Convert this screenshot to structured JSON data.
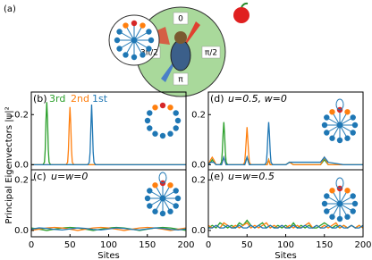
{
  "diagram": {
    "label": "(a)",
    "angles": [
      "0",
      "π/2",
      "π",
      "3π/2"
    ]
  },
  "ylabel": "Principal Eigenvectors |ψ|²",
  "chart_data": [
    {
      "type": "line",
      "label": "(b)",
      "xlim": [
        0,
        200
      ],
      "ylim": [
        -0.02,
        0.29
      ],
      "yticks": [
        {
          "value": 0,
          "label": "0.0"
        },
        {
          "value": 0.2,
          "label": "0.2"
        }
      ],
      "x": [
        0,
        10,
        15,
        17,
        18,
        19,
        20,
        21,
        22,
        23,
        25,
        35,
        45,
        47,
        48,
        49,
        50,
        51,
        52,
        53,
        55,
        65,
        73,
        75,
        76,
        77,
        78,
        79,
        80,
        81,
        83,
        100,
        125,
        150,
        175,
        200
      ],
      "series": [
        {
          "name": "3rd",
          "color": "#2ca02c",
          "values": [
            0,
            0,
            0,
            0.01,
            0.06,
            0.18,
            0.25,
            0.18,
            0.06,
            0.01,
            0,
            0,
            0,
            0,
            0,
            0,
            0,
            0,
            0,
            0,
            0,
            0,
            0,
            0,
            0,
            0,
            0,
            0,
            0,
            0,
            0,
            0,
            0,
            0,
            0,
            0
          ]
        },
        {
          "name": "2nd",
          "color": "#ff7f0e",
          "values": [
            0,
            0,
            0,
            0,
            0,
            0,
            0,
            0,
            0,
            0,
            0,
            0,
            0,
            0.01,
            0.06,
            0.16,
            0.23,
            0.16,
            0.06,
            0.01,
            0,
            0,
            0,
            0,
            0,
            0,
            0,
            0,
            0,
            0,
            0,
            0,
            0,
            0,
            0,
            0
          ]
        },
        {
          "name": "1st",
          "color": "#1f77b4",
          "values": [
            0,
            0,
            0,
            0,
            0,
            0,
            0,
            0,
            0,
            0,
            0,
            0,
            0,
            0,
            0,
            0,
            0,
            0,
            0,
            0,
            0,
            0,
            0,
            0.01,
            0.05,
            0.15,
            0.24,
            0.15,
            0.05,
            0.01,
            0,
            0,
            0,
            0,
            0,
            0
          ]
        }
      ]
    },
    {
      "type": "line",
      "label": "(c)",
      "annotation": "u=w=0",
      "xlabel": "Sites",
      "xlim": [
        0,
        200
      ],
      "ylim": [
        -0.025,
        0.24
      ],
      "xticks": [
        0,
        50,
        100,
        150,
        200
      ],
      "yticks": [
        {
          "value": 0,
          "label": "0.0"
        },
        {
          "value": 0.2,
          "label": "0.2"
        }
      ],
      "x": [
        0,
        10,
        20,
        30,
        40,
        50,
        60,
        70,
        80,
        90,
        100,
        110,
        120,
        130,
        140,
        150,
        160,
        170,
        180,
        190,
        200
      ],
      "series": [
        {
          "color": "#2ca02c",
          "values": [
            0.01,
            0.005,
            0,
            0.005,
            0.01,
            0.012,
            0.01,
            0.005,
            0,
            0.005,
            0.01,
            0.012,
            0.01,
            0.005,
            0,
            0.005,
            0.01,
            0.012,
            0.01,
            0.005,
            0
          ]
        },
        {
          "color": "#ff7f0e",
          "values": [
            0,
            0.005,
            0.01,
            0.012,
            0.01,
            0.005,
            0,
            0.005,
            0.01,
            0.012,
            0.01,
            0.005,
            0,
            0.005,
            0.01,
            0.012,
            0.01,
            0.005,
            0,
            0.005,
            0.01
          ]
        },
        {
          "color": "#1f77b4",
          "values": [
            0.005,
            0.01,
            0.008,
            0.004,
            0.002,
            0.006,
            0.01,
            0.008,
            0.004,
            0.002,
            0.006,
            0.01,
            0.008,
            0.004,
            0.002,
            0.006,
            0.01,
            0.008,
            0.004,
            0.002,
            0.006
          ]
        }
      ]
    },
    {
      "type": "line",
      "label": "(d)",
      "annotation": "u=0.5, w=0",
      "xlim": [
        0,
        200
      ],
      "ylim": [
        -0.02,
        0.29
      ],
      "yticks": [
        {
          "value": 0,
          "label": "0.0"
        },
        {
          "value": 0.2,
          "label": "0.2"
        }
      ],
      "x": [
        0,
        3,
        5,
        7,
        10,
        15,
        17,
        18,
        19,
        20,
        21,
        22,
        23,
        25,
        35,
        45,
        47,
        48,
        49,
        50,
        51,
        52,
        53,
        55,
        65,
        73,
        75,
        76,
        77,
        78,
        79,
        80,
        81,
        83,
        100,
        105,
        110,
        145,
        150,
        155,
        175,
        200
      ],
      "series": [
        {
          "color": "#2ca02c",
          "values": [
            0,
            0.01,
            0.02,
            0.01,
            0,
            0,
            0.01,
            0.05,
            0.12,
            0.17,
            0.12,
            0.05,
            0.01,
            0,
            0,
            0,
            0,
            0.01,
            0.02,
            0.03,
            0.02,
            0.01,
            0,
            0,
            0,
            0,
            0,
            0,
            0.01,
            0.02,
            0.01,
            0,
            0,
            0,
            0,
            0.01,
            0,
            0,
            0.02,
            0,
            0,
            0
          ]
        },
        {
          "color": "#ff7f0e",
          "values": [
            0,
            0.02,
            0.03,
            0.02,
            0,
            0,
            0,
            0.01,
            0.02,
            0.03,
            0.02,
            0.01,
            0,
            0,
            0,
            0,
            0.01,
            0.05,
            0.1,
            0.15,
            0.1,
            0.05,
            0.01,
            0,
            0,
            0,
            0,
            0,
            0.01,
            0.02,
            0.01,
            0,
            0,
            0,
            0,
            0.01,
            0,
            0,
            0.03,
            0,
            0,
            0
          ]
        },
        {
          "color": "#1f77b4",
          "values": [
            0,
            0.01,
            0.01,
            0.01,
            0,
            0,
            0,
            0.01,
            0.02,
            0.03,
            0.02,
            0.01,
            0,
            0,
            0,
            0,
            0,
            0.01,
            0.02,
            0.03,
            0.02,
            0.01,
            0,
            0,
            0,
            0,
            0.01,
            0.05,
            0.12,
            0.17,
            0.12,
            0.05,
            0.01,
            0,
            0,
            0.01,
            0.01,
            0.01,
            0.03,
            0.01,
            0,
            0
          ]
        }
      ]
    },
    {
      "type": "line",
      "label": "(e)",
      "annotation": "u=w=0.5",
      "xlabel": "Sites",
      "xlim": [
        0,
        200
      ],
      "ylim": [
        -0.025,
        0.24
      ],
      "xticks": [
        0,
        50,
        100,
        150,
        200
      ],
      "yticks": [
        {
          "value": 0,
          "label": "0.0"
        },
        {
          "value": 0.2,
          "label": "0.2"
        }
      ],
      "x": [
        0,
        5,
        10,
        15,
        20,
        25,
        30,
        35,
        40,
        45,
        50,
        55,
        60,
        65,
        70,
        75,
        80,
        85,
        90,
        95,
        100,
        105,
        110,
        115,
        120,
        125,
        130,
        135,
        140,
        145,
        150,
        155,
        160,
        165,
        170,
        175,
        180,
        185,
        190,
        195,
        200
      ],
      "series": [
        {
          "color": "#2ca02c",
          "values": [
            0.01,
            0.02,
            0.01,
            0.03,
            0.02,
            0.01,
            0.02,
            0.01,
            0.03,
            0.02,
            0.04,
            0.02,
            0.01,
            0.02,
            0.03,
            0.01,
            0.02,
            0.01,
            0.02,
            0.01,
            0.02,
            0.01,
            0.03,
            0.01,
            0.02,
            0.01,
            0.02,
            0.01,
            0.01,
            0.02,
            0.03,
            0.02,
            0.01,
            0.02,
            0.01,
            0.02,
            0.01,
            0.02,
            0.01,
            0.02,
            0.01
          ]
        },
        {
          "color": "#ff7f0e",
          "values": [
            0.02,
            0.01,
            0.02,
            0.01,
            0.03,
            0.02,
            0.01,
            0.02,
            0.01,
            0.02,
            0.03,
            0.01,
            0.02,
            0.01,
            0.02,
            0.03,
            0.01,
            0.02,
            0.01,
            0.02,
            0.01,
            0.02,
            0.01,
            0.02,
            0.01,
            0.02,
            0.03,
            0.01,
            0.02,
            0.01,
            0.02,
            0.01,
            0.02,
            0.03,
            0.01,
            0.02,
            0.01,
            0.02,
            0.01,
            0.02,
            0.01
          ]
        },
        {
          "color": "#1f77b4",
          "values": [
            0.01,
            0.01,
            0.02,
            0.01,
            0.01,
            0.02,
            0.01,
            0.01,
            0.02,
            0.01,
            0.01,
            0.02,
            0.01,
            0.02,
            0.01,
            0.01,
            0.02,
            0.01,
            0.01,
            0.02,
            0.01,
            0.01,
            0.02,
            0.01,
            0.01,
            0.02,
            0.01,
            0.01,
            0.02,
            0.01,
            0.01,
            0.02,
            0.01,
            0.01,
            0.02,
            0.01,
            0.01,
            0.02,
            0.01,
            0.01,
            0.02
          ]
        }
      ]
    }
  ]
}
